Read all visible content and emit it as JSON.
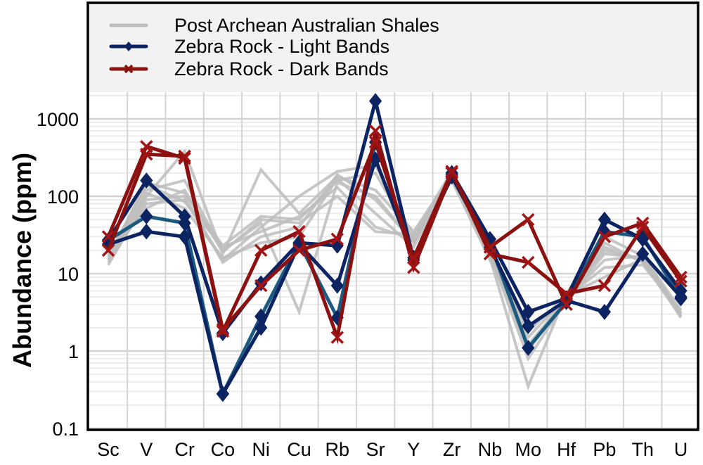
{
  "chart_data": {
    "type": "line",
    "title": "",
    "xlabel": "",
    "ylabel": "Abundance (ppm)",
    "yscale": "log",
    "ylim": [
      0.1,
      3000
    ],
    "yticks": [
      0.1,
      1,
      10,
      100,
      1000
    ],
    "ytick_labels": [
      "0.1",
      "1",
      "10",
      "100",
      "1000"
    ],
    "grid": true,
    "legend_position": "top (inside, shaded band)",
    "categories": [
      "Sc",
      "V",
      "Cr",
      "Co",
      "Ni",
      "Cu",
      "Rb",
      "Sr",
      "Y",
      "Zr",
      "Nb",
      "Mo",
      "Hf",
      "Pb",
      "Th",
      "U"
    ],
    "legend": [
      {
        "label": "Post Archean Australian Shales",
        "color": "#bdbdbd",
        "marker": "none"
      },
      {
        "label": "Zebra Rock - Light Bands",
        "color": "#0d2463",
        "marker": "diamond"
      },
      {
        "label": "Zebra Rock - Dark Bands",
        "color": "#8b1010",
        "marker": "x"
      }
    ],
    "series": [
      {
        "name": "Post Archean Australian Shales",
        "group": "paas",
        "color": "#bdbdbd",
        "values": [
          16,
          150,
          110,
          23,
          55,
          50,
          160,
          200,
          27,
          210,
          19,
          1.0,
          5,
          20,
          15,
          3.1
        ]
      },
      {
        "name": "Post Archean Australian Shales",
        "group": "paas",
        "color": "#bdbdbd",
        "values": [
          15,
          100,
          380,
          18,
          220,
          60,
          180,
          120,
          35,
          190,
          16,
          0.35,
          5.5,
          30,
          17,
          3.0
        ]
      },
      {
        "name": "Post Archean Australian Shales",
        "group": "paas",
        "color": "#bdbdbd",
        "values": [
          14,
          80,
          90,
          15,
          40,
          100,
          210,
          250,
          30,
          180,
          18,
          0.8,
          4.5,
          25,
          14,
          2.8
        ]
      },
      {
        "name": "Post Archean Australian Shales",
        "group": "paas",
        "color": "#bdbdbd",
        "values": [
          18,
          120,
          160,
          20,
          45,
          3.2,
          150,
          100,
          25,
          200,
          20,
          1.5,
          5,
          12,
          13,
          3.3
        ]
      },
      {
        "name": "Post Archean Australian Shales",
        "group": "paas",
        "color": "#bdbdbd",
        "values": [
          13,
          90,
          100,
          14,
          30,
          40,
          190,
          90,
          26,
          170,
          17,
          1.2,
          4.7,
          18,
          16,
          2.7
        ]
      },
      {
        "name": "Post Archean Australian Shales",
        "group": "paas",
        "color": "#bdbdbd",
        "values": [
          17,
          140,
          85,
          22,
          35,
          55,
          130,
          40,
          28,
          160,
          15,
          2.0,
          4.2,
          22,
          14.5,
          3.1
        ]
      },
      {
        "name": "Post Archean Australian Shales",
        "group": "paas",
        "color": "#bdbdbd",
        "values": [
          19,
          70,
          120,
          19,
          50,
          45,
          100,
          35,
          32,
          210,
          21,
          1.8,
          5.2,
          9,
          15.5,
          2.9
        ]
      },
      {
        "name": "Post Archean Australian Shales",
        "group": "paas",
        "color": "#bdbdbd",
        "values": [
          15,
          110,
          70,
          16,
          25,
          30,
          170,
          60,
          22,
          190,
          19,
          1.1,
          4.8,
          15,
          17,
          3.4
        ]
      },
      {
        "name": "Zebra Rock - Light Bands",
        "group": "light",
        "color": "#1d5a80",
        "values": [
          27,
          55,
          45,
          0.28,
          2.8,
          25,
          2.7,
          500,
          16,
          190,
          25,
          1.1,
          4.3,
          35,
          30,
          4.8
        ]
      },
      {
        "name": "Zebra Rock - Light Bands",
        "group": "light",
        "color": "#0d2463",
        "values": [
          27,
          160,
          55,
          1.7,
          7.5,
          25,
          23,
          1700,
          15,
          200,
          28,
          3.2,
          4.8,
          50,
          28,
          6
        ]
      },
      {
        "name": "Zebra Rock - Light Bands",
        "group": "light",
        "color": "#0d2463",
        "values": [
          24,
          35,
          30,
          0.28,
          2.0,
          24,
          7,
          300,
          16,
          180,
          22,
          2.1,
          4.5,
          3.2,
          18,
          5
        ]
      },
      {
        "name": "Zebra Rock - Dark Bands",
        "group": "dark",
        "color": "#8b1010",
        "values": [
          30,
          440,
          310,
          1.8,
          20,
          35,
          1.5,
          700,
          12,
          200,
          22,
          50,
          4,
          30,
          45,
          9
        ]
      },
      {
        "name": "Zebra Rock - Dark Bands",
        "group": "dark",
        "color": "#8b1010",
        "values": [
          20,
          350,
          330,
          1.9,
          7,
          20,
          28,
          500,
          16,
          210,
          18,
          14,
          5.5,
          7,
          40,
          8
        ]
      }
    ]
  },
  "colors": {
    "frame": "#000000",
    "legend_bg": "#f2f2f2",
    "grid_major": "#d4d4d4",
    "grid_minor": "#ececec"
  }
}
